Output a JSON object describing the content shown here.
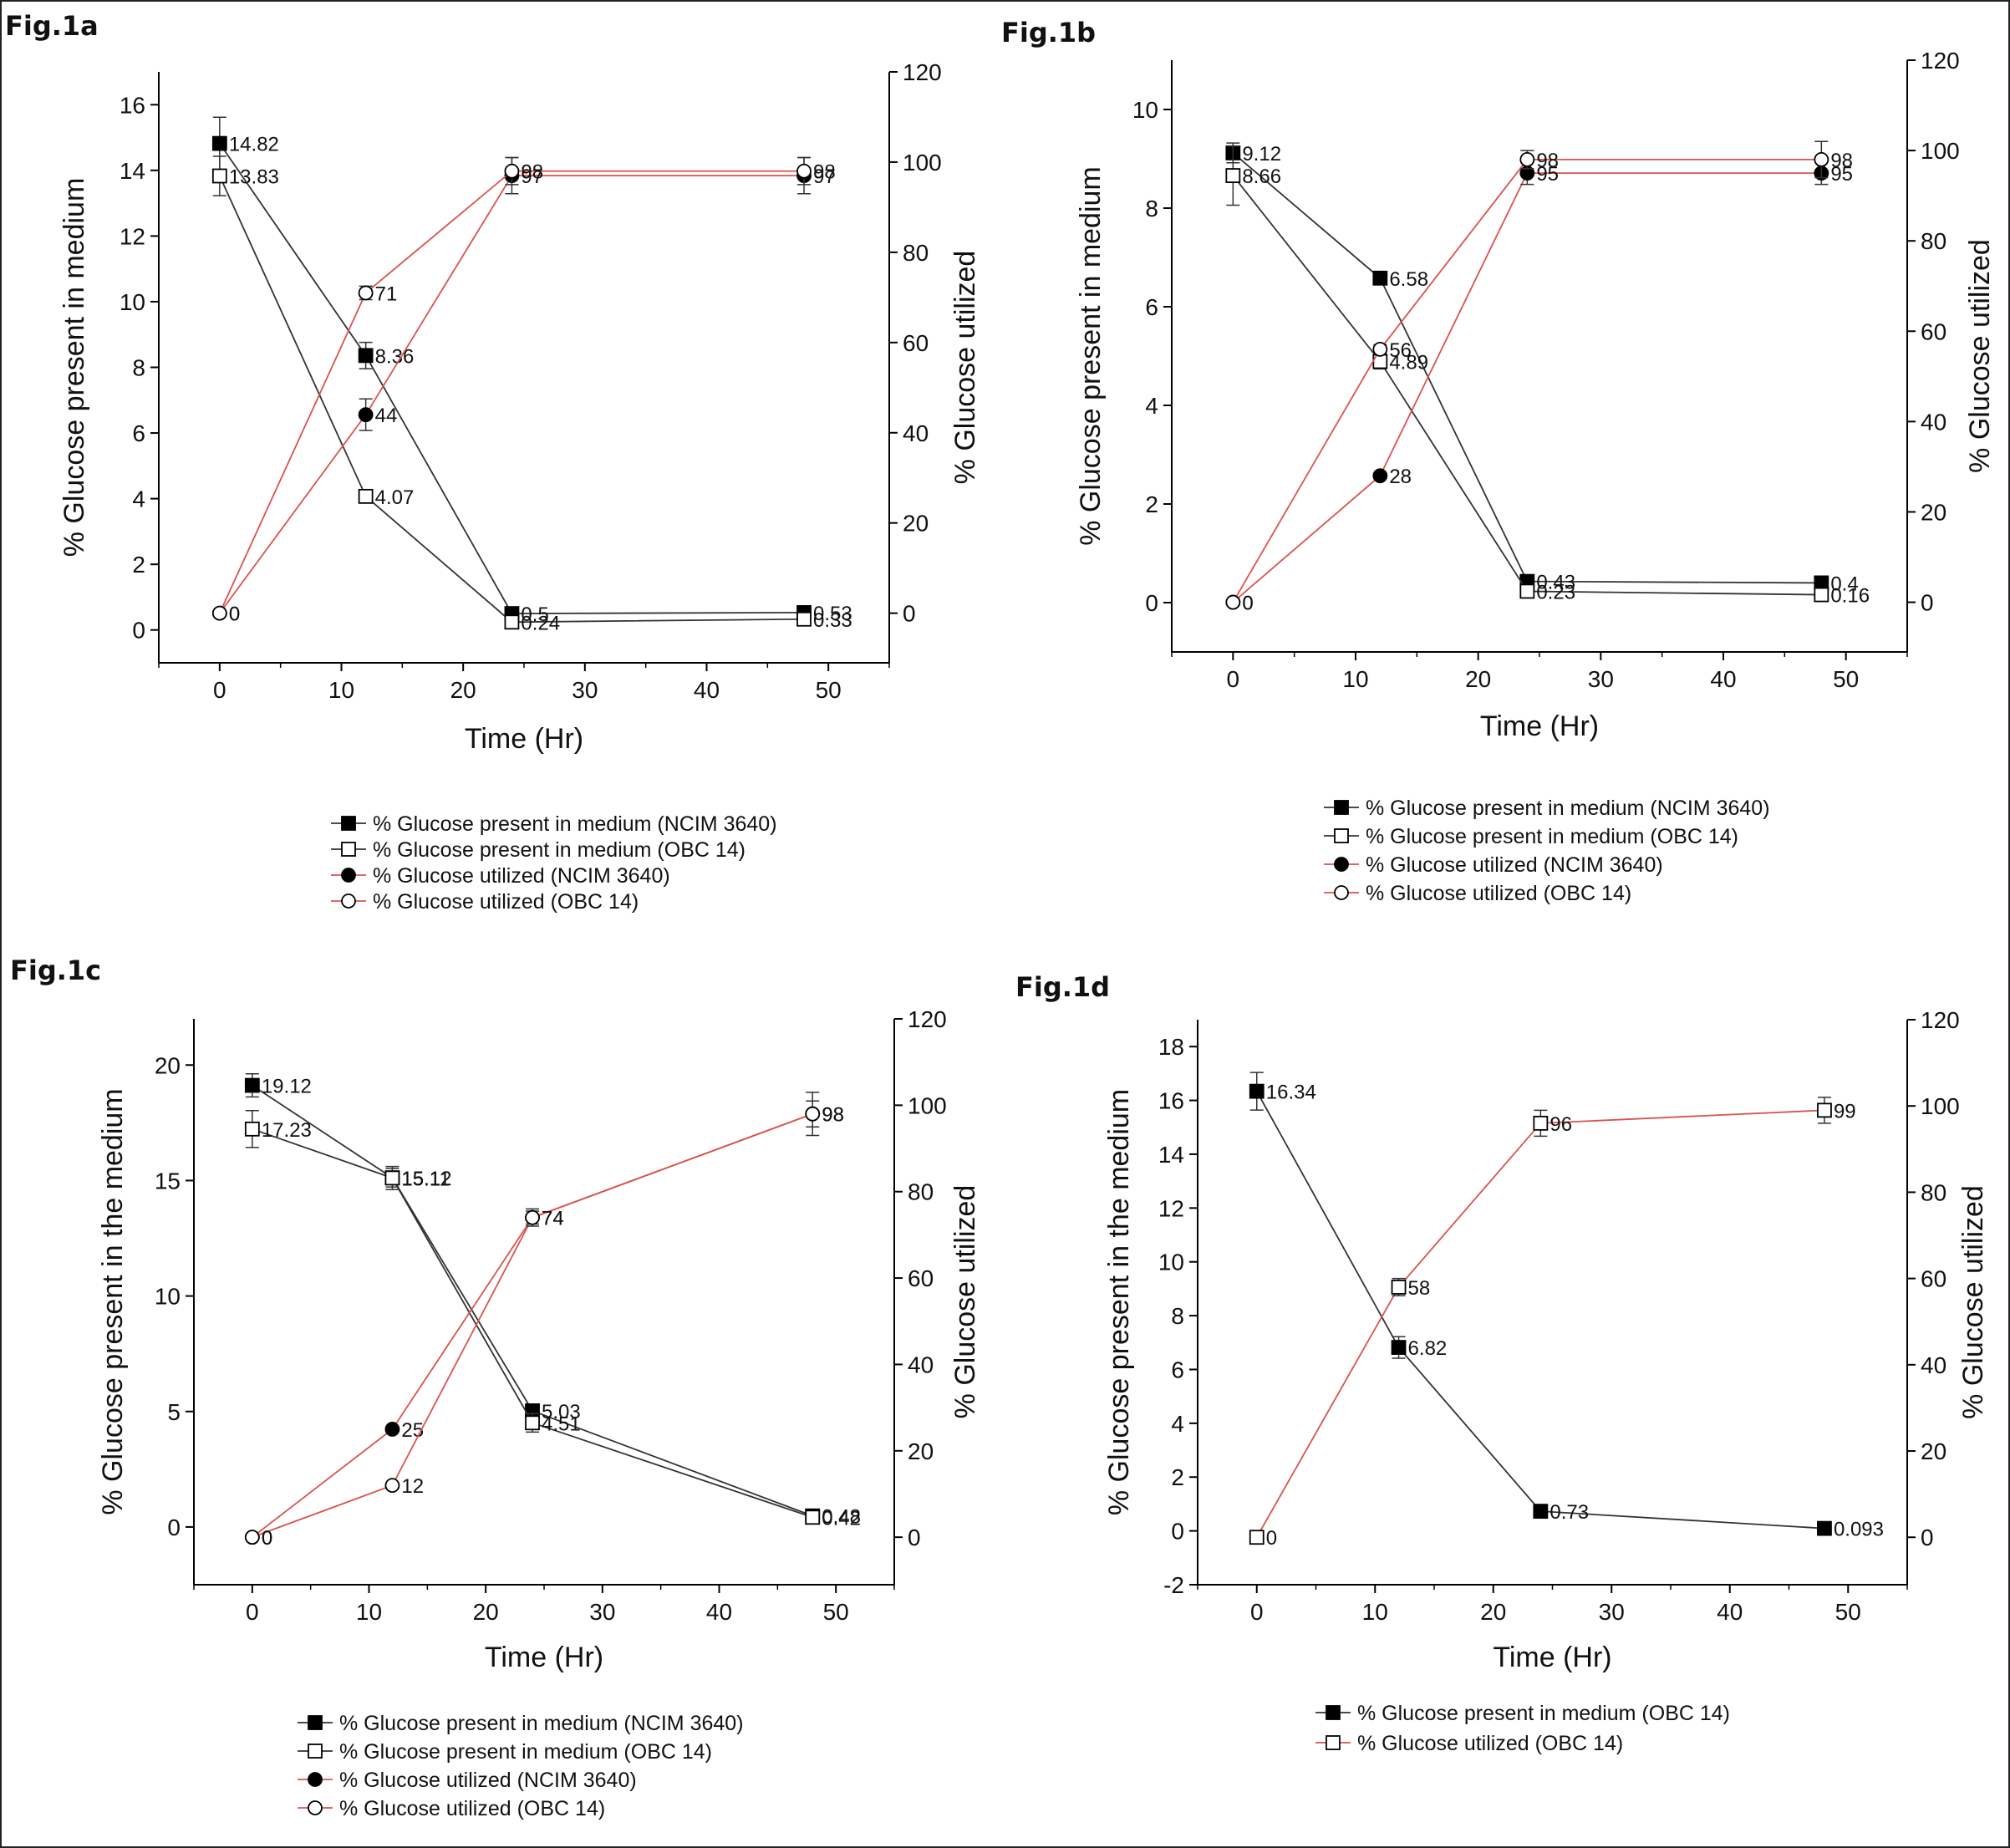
{
  "colors": {
    "black_series": "#333333",
    "red_series": "#d9534f",
    "axis": "#000000"
  },
  "chart_data": [
    {
      "type": "line",
      "fig_label": "Fig.1a",
      "xlabel": "Time (Hr)",
      "ylabel": "% Glucose present in medium",
      "y2label": "% Glucose utilized",
      "xlim": [
        -5,
        55
      ],
      "xticks": [
        0,
        10,
        20,
        30,
        40,
        50
      ],
      "ylim": [
        -1,
        17
      ],
      "yticks": [
        0,
        2,
        4,
        6,
        8,
        10,
        12,
        14,
        16
      ],
      "y2lim": [
        -11,
        120
      ],
      "y2ticks": [
        0,
        20,
        40,
        60,
        80,
        100,
        120
      ],
      "series": [
        {
          "name": "% Glucose present in medium (NCIM 3640)",
          "axis": "left",
          "color": "black",
          "marker": "square-filled",
          "x": [
            0,
            12,
            24,
            48
          ],
          "y": [
            14.82,
            8.36,
            0.5,
            0.53
          ],
          "labels": [
            "14.82",
            "8.36",
            "0.5",
            "0.53"
          ],
          "err": [
            0.8,
            0.4,
            0.1,
            0.1
          ]
        },
        {
          "name": "% Glucose present in medium (OBC 14)",
          "axis": "left",
          "color": "black",
          "marker": "square-open",
          "x": [
            0,
            12,
            24,
            48
          ],
          "y": [
            13.83,
            4.07,
            0.24,
            0.33
          ],
          "labels": [
            "13.83",
            "4.07",
            "0.24",
            "0.33"
          ],
          "err": [
            0.6,
            0.1,
            0.1,
            0.1
          ]
        },
        {
          "name": "% Glucose utilized (NCIM 3640)",
          "axis": "right",
          "color": "red",
          "marker": "circle-filled",
          "x": [
            0,
            12,
            24,
            48
          ],
          "y": [
            0,
            44,
            97,
            97
          ],
          "labels": [
            "0",
            "44",
            "97",
            "97"
          ],
          "err": [
            0,
            3.5,
            4,
            4
          ]
        },
        {
          "name": "% Glucose utilized (OBC 14)",
          "axis": "right",
          "color": "red",
          "marker": "circle-open",
          "x": [
            0,
            12,
            24,
            48
          ],
          "y": [
            0,
            71,
            98,
            98
          ],
          "labels": [
            "0",
            "71",
            "98",
            "98"
          ],
          "err": [
            0,
            1.5,
            3,
            3
          ]
        }
      ]
    },
    {
      "type": "line",
      "fig_label": "Fig.1b",
      "xlabel": "Time (Hr)",
      "ylabel": "% Glucose present in medium",
      "y2label": "% Glucose utilized",
      "xlim": [
        -5,
        55
      ],
      "xticks": [
        0,
        10,
        20,
        30,
        40,
        50
      ],
      "ylim": [
        -1,
        11
      ],
      "yticks": [
        0,
        2,
        4,
        6,
        8,
        10
      ],
      "y2lim": [
        -11,
        120
      ],
      "y2ticks": [
        0,
        20,
        40,
        60,
        80,
        100,
        120
      ],
      "series": [
        {
          "name": "% Glucose present in medium (NCIM 3640)",
          "axis": "left",
          "color": "black",
          "marker": "square-filled",
          "x": [
            0,
            12,
            24,
            48
          ],
          "y": [
            9.12,
            6.58,
            0.43,
            0.4
          ],
          "labels": [
            "9.12",
            "6.58",
            "0.43",
            "0.4"
          ],
          "err": [
            0.2,
            0.05,
            0.05,
            0.05
          ]
        },
        {
          "name": "% Glucose present in medium (OBC 14)",
          "axis": "left",
          "color": "black",
          "marker": "square-open",
          "x": [
            0,
            12,
            24,
            48
          ],
          "y": [
            8.66,
            4.89,
            0.23,
            0.16
          ],
          "labels": [
            "8.66",
            "4.89",
            "0.23",
            "0.16"
          ],
          "err": [
            0.6,
            0.15,
            0.05,
            0.05
          ]
        },
        {
          "name": "% Glucose utilized (NCIM 3640)",
          "axis": "right",
          "color": "red",
          "marker": "circle-filled",
          "x": [
            0,
            12,
            24,
            48
          ],
          "y": [
            0,
            28,
            95,
            95
          ],
          "labels": [
            "0",
            "28",
            "95",
            "95"
          ],
          "err": [
            0,
            0.5,
            2.5,
            2.5
          ]
        },
        {
          "name": "% Glucose utilized (OBC 14)",
          "axis": "right",
          "color": "red",
          "marker": "circle-open",
          "x": [
            0,
            12,
            24,
            48
          ],
          "y": [
            0,
            56,
            98,
            98
          ],
          "labels": [
            "0",
            "56",
            "98",
            "98"
          ],
          "err": [
            0,
            1,
            2,
            4
          ]
        }
      ]
    },
    {
      "type": "line",
      "fig_label": "Fig.1c",
      "xlabel": "Time (Hr)",
      "ylabel": "% Glucose present in the medium",
      "y2label": "% Glucose utilized",
      "xlim": [
        -5,
        55
      ],
      "xticks": [
        0,
        10,
        20,
        30,
        40,
        50
      ],
      "ylim": [
        -2.5,
        22
      ],
      "yticks": [
        0,
        5,
        10,
        15,
        20
      ],
      "y2lim": [
        -11,
        120
      ],
      "y2ticks": [
        0,
        20,
        40,
        60,
        80,
        100,
        120
      ],
      "series": [
        {
          "name": "% Glucose present in medium (NCIM 3640)",
          "axis": "left",
          "color": "black",
          "marker": "square-filled",
          "x": [
            0,
            12,
            24,
            48
          ],
          "y": [
            19.12,
            15.12,
            5.03,
            0.48
          ],
          "labels": [
            "19.12",
            "15.12",
            "5.03",
            "0.48"
          ],
          "err": [
            0.5,
            0.4,
            0.1,
            0.05
          ]
        },
        {
          "name": "% Glucose present in medium (OBC 14)",
          "axis": "left",
          "color": "black",
          "marker": "square-open",
          "x": [
            0,
            12,
            24,
            48
          ],
          "y": [
            17.23,
            15.11,
            4.51,
            0.42
          ],
          "labels": [
            "17.23",
            "15.11",
            "4.51",
            "0.42"
          ],
          "err": [
            0.8,
            0.5,
            0.4,
            0.05
          ]
        },
        {
          "name": "% Glucose utilized (NCIM 3640)",
          "axis": "right",
          "color": "red",
          "marker": "circle-filled",
          "x": [
            0,
            12,
            24,
            48
          ],
          "y": [
            0,
            25,
            74,
            98
          ],
          "labels": [
            "0",
            "25",
            "74",
            "98"
          ],
          "err": [
            0,
            0.5,
            1.5,
            3
          ]
        },
        {
          "name": "% Glucose utilized (OBC 14)",
          "axis": "right",
          "color": "red",
          "marker": "circle-open",
          "x": [
            0,
            12,
            24,
            48
          ],
          "y": [
            0,
            12,
            74,
            98
          ],
          "labels": [
            "0",
            "12",
            "74",
            "98"
          ],
          "err": [
            0,
            0.5,
            2,
            5
          ]
        }
      ]
    },
    {
      "type": "line",
      "fig_label": "Fig.1d",
      "xlabel": "Time (Hr)",
      "ylabel": "% Glucose present in the medium",
      "y2label": "% Glucose utilized",
      "xlim": [
        -5,
        55
      ],
      "xticks": [
        0,
        10,
        20,
        30,
        40,
        50
      ],
      "ylim": [
        -2,
        19
      ],
      "yticks": [
        -2,
        0,
        2,
        4,
        6,
        8,
        10,
        12,
        14,
        16,
        18
      ],
      "y2lim": [
        -11,
        120
      ],
      "y2ticks": [
        0,
        20,
        40,
        60,
        80,
        100,
        120
      ],
      "series": [
        {
          "name": "% Glucose present in medium (OBC 14)",
          "axis": "left",
          "color": "black",
          "marker": "square-filled",
          "x": [
            0,
            12,
            24,
            48
          ],
          "y": [
            16.34,
            6.82,
            0.73,
            0.093
          ],
          "labels": [
            "16.34",
            "6.82",
            "0.73",
            "0.093"
          ],
          "err": [
            0.7,
            0.4,
            0.05,
            0.05
          ]
        },
        {
          "name": "% Glucose utilized (OBC 14)",
          "axis": "right",
          "color": "red",
          "marker": "square-open",
          "x": [
            0,
            12,
            24,
            48
          ],
          "y": [
            0,
            58,
            96,
            99
          ],
          "labels": [
            "0",
            "58",
            "96",
            "99"
          ],
          "err": [
            0,
            2,
            3,
            3
          ]
        }
      ]
    }
  ]
}
